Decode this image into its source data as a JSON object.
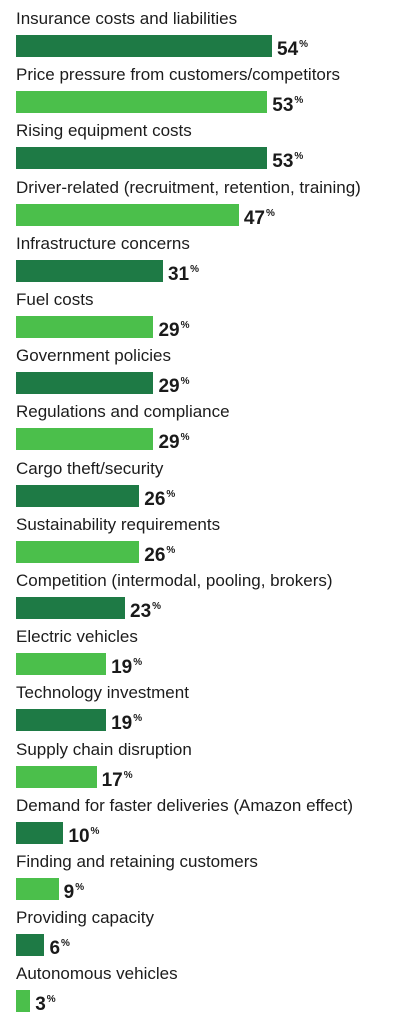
{
  "chart_data": {
    "type": "bar",
    "orientation": "horizontal",
    "categories": [
      "Insurance costs and liabilities",
      "Price pressure from customers/competitors",
      "Rising equipment costs",
      "Driver-related (recruitment, retention, training)",
      "Infrastructure concerns",
      "Fuel costs",
      "Government policies",
      "Regulations and compliance",
      "Cargo theft/security",
      "Sustainability requirements",
      "Competition (intermodal, pooling, brokers)",
      "Electric vehicles",
      "Technology investment",
      "Supply chain disruption",
      "Demand for faster deliveries (Amazon effect)",
      "Finding and retaining customers",
      "Providing capacity",
      "Autonomous vehicles"
    ],
    "values": [
      54,
      53,
      53,
      47,
      31,
      29,
      29,
      29,
      26,
      26,
      23,
      19,
      19,
      17,
      10,
      9,
      6,
      3
    ],
    "unit": "%",
    "xlim": [
      0,
      100
    ],
    "grid": false,
    "legend": "none",
    "colors": {
      "dark": "#1e7a45",
      "light": "#4bbf4b"
    }
  }
}
